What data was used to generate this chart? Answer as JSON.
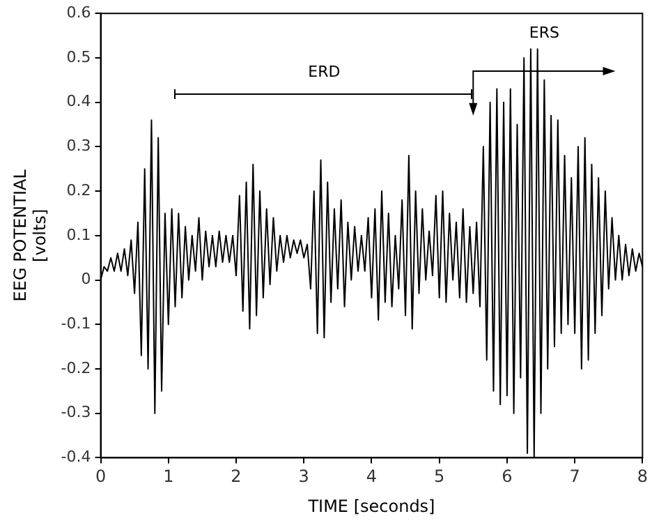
{
  "chart_data": {
    "type": "line",
    "xlabel": "TIME [seconds]",
    "ylabel": "EEG POTENTIAL\n[volts]",
    "xlim": [
      0,
      8
    ],
    "xticks": [
      0,
      1,
      2,
      3,
      4,
      5,
      6,
      7,
      8
    ],
    "ylim": [
      -0.4,
      0.6
    ],
    "yticks": [
      -0.4,
      -0.3,
      -0.2,
      -0.1,
      0,
      0.1,
      0.2,
      0.3,
      0.4,
      0.5,
      0.6
    ],
    "grid": false,
    "legend": false,
    "marker": "none",
    "line_style": "solid",
    "annotations": [
      "ERD",
      "ERS"
    ],
    "x": [
      0,
      0.05,
      0.1,
      0.15,
      0.2,
      0.25,
      0.3,
      0.35,
      0.4,
      0.45,
      0.5,
      0.55,
      0.6,
      0.65,
      0.7,
      0.75,
      0.8,
      0.85,
      0.9,
      0.95,
      1,
      1.05,
      1.1,
      1.15,
      1.2,
      1.25,
      1.3,
      1.35,
      1.4,
      1.45,
      1.5,
      1.55,
      1.6,
      1.65,
      1.7,
      1.75,
      1.8,
      1.85,
      1.9,
      1.95,
      2,
      2.05,
      2.1,
      2.15,
      2.2,
      2.25,
      2.3,
      2.35,
      2.4,
      2.45,
      2.5,
      2.55,
      2.6,
      2.65,
      2.7,
      2.75,
      2.8,
      2.85,
      2.9,
      2.95,
      3,
      3.05,
      3.1,
      3.15,
      3.2,
      3.25,
      3.3,
      3.35,
      3.4,
      3.45,
      3.5,
      3.55,
      3.6,
      3.65,
      3.7,
      3.75,
      3.8,
      3.85,
      3.9,
      3.95,
      4,
      4.05,
      4.1,
      4.15,
      4.2,
      4.25,
      4.3,
      4.35,
      4.4,
      4.45,
      4.5,
      4.55,
      4.6,
      4.65,
      4.7,
      4.75,
      4.8,
      4.85,
      4.9,
      4.95,
      5,
      5.05,
      5.1,
      5.15,
      5.2,
      5.25,
      5.3,
      5.35,
      5.4,
      5.45,
      5.5,
      5.55,
      5.6,
      5.65,
      5.7,
      5.75,
      5.8,
      5.85,
      5.9,
      5.95,
      6,
      6.05,
      6.1,
      6.15,
      6.2,
      6.25,
      6.3,
      6.35,
      6.4,
      6.45,
      6.5,
      6.55,
      6.6,
      6.65,
      6.7,
      6.75,
      6.8,
      6.85,
      6.9,
      6.95,
      7,
      7.05,
      7.1,
      7.15,
      7.2,
      7.25,
      7.3,
      7.35,
      7.4,
      7.45,
      7.5,
      7.55,
      7.6,
      7.65,
      7.7,
      7.75,
      7.8,
      7.85,
      7.9,
      7.95,
      8
    ],
    "series": [
      {
        "color": "#000000",
        "values": [
          0,
          0.03,
          0.02,
          0.05,
          0.02,
          0.06,
          0.02,
          0.07,
          0.01,
          0.09,
          -0.03,
          0.13,
          -0.17,
          0.25,
          -0.2,
          0.36,
          -0.3,
          0.32,
          -0.25,
          0.15,
          -0.1,
          0.16,
          -0.06,
          0.15,
          -0.04,
          0.12,
          0,
          0.1,
          0.02,
          0.14,
          0,
          0.11,
          0.03,
          0.1,
          0.03,
          0.11,
          0.04,
          0.1,
          0.04,
          0.1,
          0.01,
          0.19,
          -0.07,
          0.22,
          -0.11,
          0.26,
          -0.08,
          0.2,
          -0.04,
          0.16,
          -0.01,
          0.14,
          0.02,
          0.1,
          0.04,
          0.1,
          0.05,
          0.09,
          0.06,
          0.09,
          0.05,
          0.08,
          -0.02,
          0.2,
          -0.12,
          0.27,
          -0.13,
          0.22,
          -0.05,
          0.16,
          -0.02,
          0.18,
          -0.06,
          0.13,
          0,
          0.12,
          0.02,
          0.1,
          0.02,
          0.14,
          -0.04,
          0.16,
          -0.09,
          0.2,
          -0.05,
          0.15,
          -0.06,
          0.1,
          -0.02,
          0.18,
          -0.08,
          0.28,
          -0.11,
          0.2,
          -0.03,
          0.16,
          0,
          0.11,
          0.01,
          0.19,
          -0.04,
          0.2,
          -0.05,
          0.15,
          0,
          0.13,
          -0.04,
          0.16,
          -0.05,
          0.12,
          -0.03,
          0.13,
          -0.06,
          0.3,
          -0.18,
          0.4,
          -0.25,
          0.43,
          -0.28,
          0.4,
          -0.26,
          0.43,
          -0.3,
          0.35,
          -0.22,
          0.5,
          -0.39,
          0.52,
          -0.4,
          0.52,
          -0.3,
          0.45,
          -0.2,
          0.37,
          -0.15,
          0.36,
          -0.12,
          0.28,
          -0.1,
          0.23,
          -0.12,
          0.3,
          -0.2,
          0.32,
          -0.18,
          0.26,
          -0.12,
          0.23,
          -0.08,
          0.2,
          -0.02,
          0.14,
          0,
          0.1,
          0,
          0.08,
          0.01,
          0.07,
          0.02,
          0.06,
          0.03
        ]
      }
    ]
  }
}
